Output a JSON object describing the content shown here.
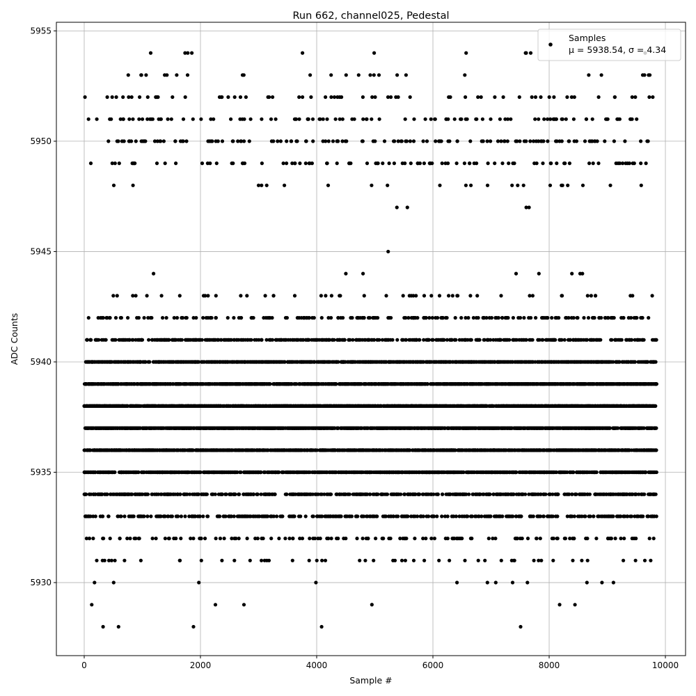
{
  "chart_data": {
    "type": "scatter",
    "title": "Run 662, channel025, Pedestal",
    "xlabel": "Sample #",
    "ylabel": "ADC Counts",
    "xlim": [
      -479,
      10347
    ],
    "ylim": [
      5926.69,
      5955.39
    ],
    "xticks": [
      0,
      2000,
      4000,
      6000,
      8000,
      10000
    ],
    "xtick_labels": [
      "0",
      "2000",
      "4000",
      "6000",
      "8000",
      "10000"
    ],
    "yticks": [
      5930,
      5935,
      5940,
      5945,
      5950,
      5955
    ],
    "ytick_labels": [
      "5930",
      "5935",
      "5940",
      "5945",
      "5950",
      "5955"
    ],
    "grid": true,
    "legend": {
      "placement": "top-right",
      "label": "Samples",
      "stats": "μ = 5938.54, σ = 4.34"
    },
    "series": [
      {
        "name": "Samples",
        "color": "#000000",
        "n_samples": 9850,
        "mean": 5938.54,
        "sigma": 4.34,
        "level_weights": {
          "5928": 0.0001,
          "5929": 0.0005,
          "5930": 0.001,
          "5931": 0.005,
          "5932": 0.015,
          "5933": 0.035,
          "5934": 0.06,
          "5935": 0.1,
          "5936": 0.13,
          "5937": 0.16,
          "5938": 0.17,
          "5939": 0.15,
          "5940": 0.1,
          "5941": 0.05,
          "5942": 0.02,
          "5943": 0.005,
          "5944": 0.001,
          "5945": 0.0001,
          "5947": 0.0002,
          "5948": 0.002,
          "5949": 0.01,
          "5950": 0.015,
          "5951": 0.012,
          "5952": 0.008,
          "5953": 0.004,
          "5954": 0.001
        },
        "notable_points": [
          [
            1880,
            5928
          ],
          [
            5230,
            5945
          ],
          [
            5380,
            5947
          ],
          [
            5560,
            5947
          ],
          [
            4950,
            5929
          ],
          [
            8180,
            5929
          ]
        ]
      }
    ]
  }
}
